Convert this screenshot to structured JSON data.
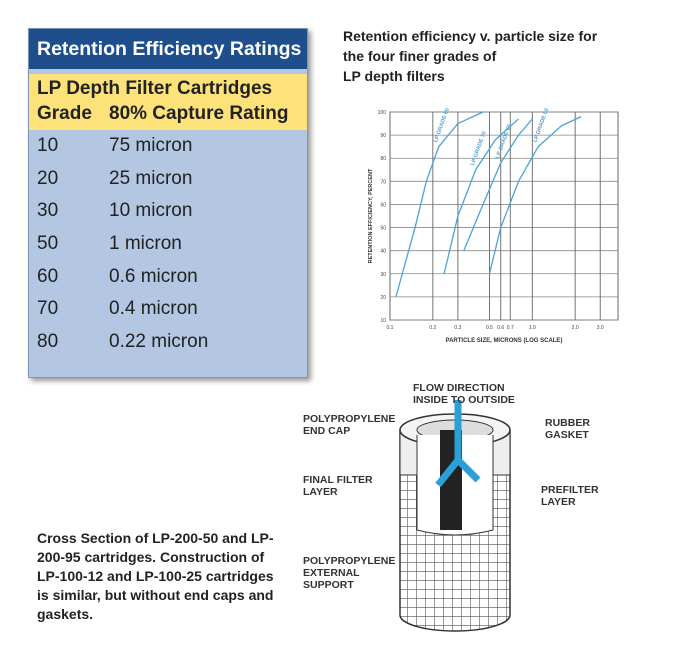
{
  "table": {
    "title": "Retention Efficiency Ratings",
    "subtitle": "LP Depth Filter Cartridges",
    "col_grade": "Grade",
    "col_rating": "80% Capture Rating",
    "rows": [
      {
        "grade": "10",
        "rating": "75 micron"
      },
      {
        "grade": "20",
        "rating": "25 micron"
      },
      {
        "grade": "30",
        "rating": "10 micron"
      },
      {
        "grade": "50",
        "rating": "1 micron"
      },
      {
        "grade": "60",
        "rating": "0.6 micron"
      },
      {
        "grade": "70",
        "rating": "0.4 micron"
      },
      {
        "grade": "80",
        "rating": "0.22 micron"
      }
    ]
  },
  "chart_title": [
    "Retention efficiency v. particle size for",
    "the four finer grades of",
    "LP depth filters"
  ],
  "chart_data": {
    "type": "line",
    "xlabel": "PARTICLE SIZE, MICRONS (LOG SCALE)",
    "ylabel": "RETENTION EFFICIENCY, PERCENT",
    "xscale": "log",
    "xlim": [
      0.1,
      4
    ],
    "ylim": [
      10,
      100
    ],
    "xticks": [
      "0.1",
      "0.2",
      "0.3",
      "0.5",
      "0.6",
      "0.7",
      "1.0",
      "2.0",
      "3.0"
    ],
    "xtick_values": [
      0.1,
      0.2,
      0.3,
      0.5,
      0.6,
      0.7,
      1.0,
      2.0,
      3.0
    ],
    "yticks": [
      10,
      20,
      30,
      40,
      50,
      60,
      70,
      80,
      90,
      100
    ],
    "grid": true,
    "color": "#4aa3d8",
    "series": [
      {
        "name": "LP GRADE 80",
        "x": [
          0.11,
          0.15,
          0.18,
          0.22,
          0.3,
          0.45
        ],
        "y": [
          20,
          50,
          70,
          85,
          95,
          100
        ]
      },
      {
        "name": "LP GRADE 70",
        "x": [
          0.24,
          0.3,
          0.4,
          0.55,
          0.8
        ],
        "y": [
          30,
          55,
          75,
          88,
          97
        ]
      },
      {
        "name": "LP GRADE 60",
        "x": [
          0.33,
          0.45,
          0.6,
          0.8,
          1.0
        ],
        "y": [
          40,
          60,
          78,
          90,
          97
        ]
      },
      {
        "name": "LP GRADE 50",
        "x": [
          0.5,
          0.6,
          0.8,
          1.1,
          1.6,
          2.2
        ],
        "y": [
          30,
          50,
          70,
          85,
          94,
          98
        ]
      }
    ]
  },
  "diagram": {
    "flow": [
      "FLOW DIRECTION",
      "INSIDE TO OUTSIDE"
    ],
    "end_cap": [
      "POLYPROPYLENE",
      "END CAP"
    ],
    "gasket": [
      "RUBBER",
      "GASKET"
    ],
    "final_filter": [
      "FINAL FILTER",
      "LAYER"
    ],
    "prefilter": [
      "PREFILTER",
      "LAYER"
    ],
    "support": [
      "POLYPROPYLENE",
      "EXTERNAL",
      "SUPPORT"
    ]
  },
  "caption": "Cross Section of  LP-200-50 and LP-200-95 cartridges.  Construction of LP-100-12 and LP-100-25 cartridges is similar, but without end caps and gaskets."
}
